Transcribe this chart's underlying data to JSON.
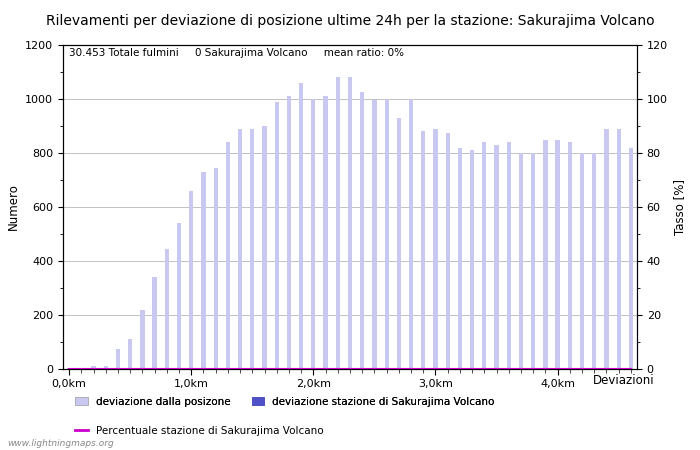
{
  "title": "Rilevamenti per deviazione di posizione ultime 24h per la stazione: Sakurajima Volcano",
  "subtitle": "30.453 Totale fulmini     0 Sakurajima Volcano     mean ratio: 0%",
  "ylabel_left": "Numero",
  "ylabel_right": "Tasso [%]",
  "xlabel": "Deviazioni",
  "watermark": "www.lightningmaps.org",
  "ylim_left": [
    0,
    1200
  ],
  "ylim_right": [
    0,
    120
  ],
  "yticks_left": [
    0,
    200,
    400,
    600,
    800,
    1000,
    1200
  ],
  "yticks_right": [
    0,
    20,
    40,
    60,
    80,
    100,
    120
  ],
  "xtick_labels": [
    "0,0km",
    "1,0km",
    "2,0km",
    "3,0km",
    "4,0km"
  ],
  "xtick_positions": [
    0,
    10,
    20,
    30,
    40
  ],
  "bar_color": "#c8c8f0",
  "bar_color_station": "#5050c8",
  "line_color": "#cc00cc",
  "bar_values": [
    5,
    2,
    10,
    10,
    75,
    110,
    220,
    340,
    445,
    540,
    660,
    730,
    745,
    840,
    890,
    890,
    900,
    990,
    1010,
    1060,
    1000,
    1010,
    1080,
    1080,
    1025,
    995,
    1000,
    930,
    1000,
    880,
    890,
    875,
    820,
    810,
    840,
    830,
    840,
    800,
    800,
    850,
    850,
    840,
    800,
    800,
    890,
    890,
    820
  ],
  "station_bar_values": [
    0,
    0,
    0,
    0,
    0,
    0,
    0,
    0,
    0,
    0,
    0,
    0,
    0,
    0,
    0,
    0,
    0,
    0,
    0,
    0,
    0,
    0,
    0,
    0,
    0,
    0,
    0,
    0,
    0,
    0,
    0,
    0,
    0,
    0,
    0,
    0,
    0,
    0,
    0,
    0,
    0,
    0,
    0,
    0,
    0,
    0,
    0
  ],
  "legend_label1": "deviazione dalla posizone",
  "legend_label2": "deviazione stazione di Sakurajima Volcano",
  "legend_label3": "Percentuale stazione di Sakurajima Volcano",
  "title_fontsize": 10,
  "subtitle_fontsize": 7.5,
  "axis_fontsize": 8.5,
  "tick_fontsize": 8
}
